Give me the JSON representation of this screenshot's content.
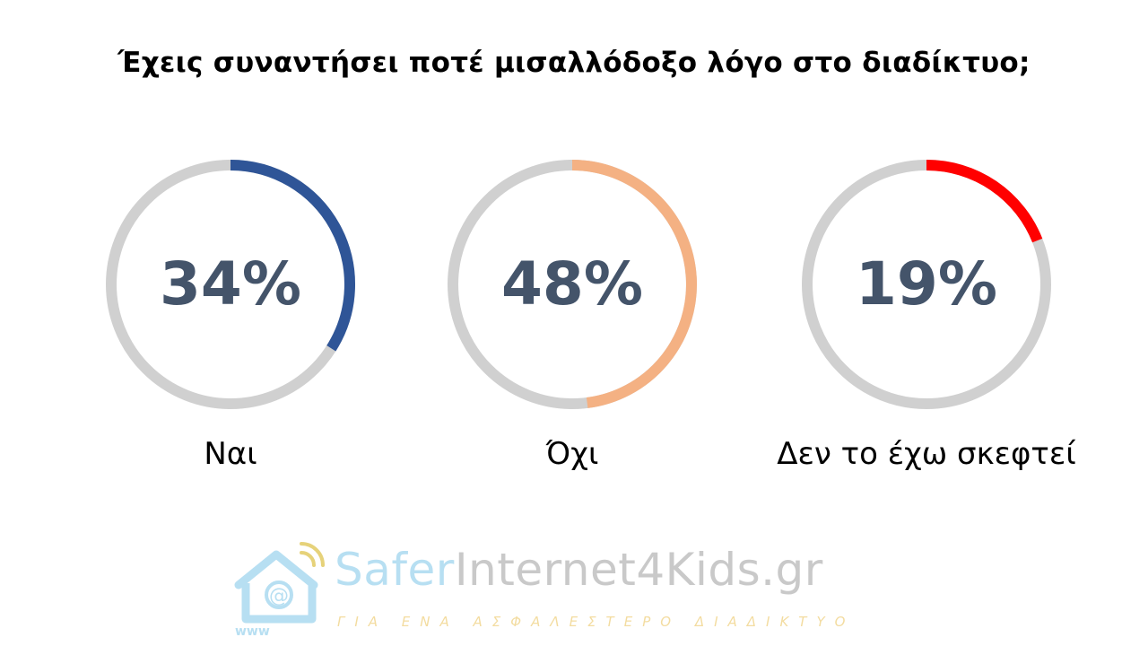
{
  "chart_data": {
    "type": "pie",
    "title": "Έχεις συναντήσει ποτέ μισαλλόδοξο λόγο στο διαδίκτυο;",
    "categories": [
      "Ναι",
      "Όχι",
      "Δεν το έχω σκεφτεί"
    ],
    "values": [
      34,
      48,
      19
    ],
    "labels": [
      "34%",
      "48%",
      "19%"
    ],
    "colors": [
      "#2f5597",
      "#f4b183",
      "#ff0000"
    ],
    "track_color": "#d0d0d0",
    "style": "separate donut per category"
  },
  "logo": {
    "name_part1": "Safer",
    "name_part2": "Internet4Kids.gr",
    "tagline": "ΓΙΑ ΕΝΑ ΑΣΦΑΛΕΣΤΕΡΟ ΔΙΑΔΙΚΤΥΟ",
    "icon_text": "www",
    "icon": "house-at-sign-wifi-icon"
  }
}
